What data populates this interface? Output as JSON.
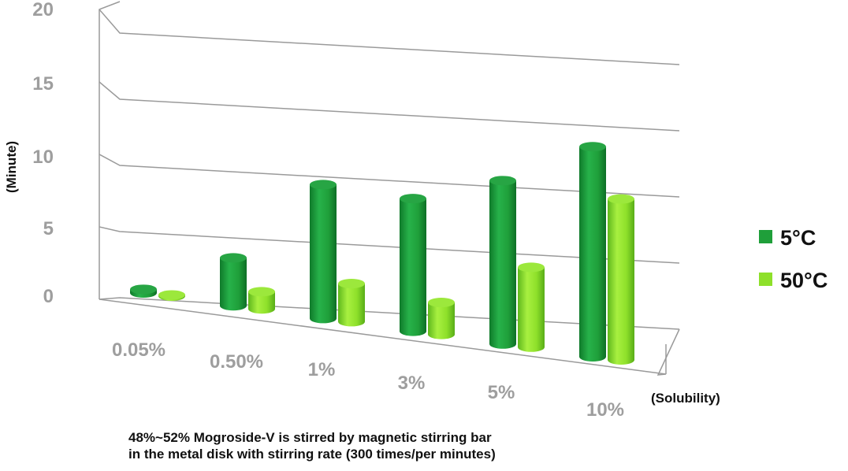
{
  "chart_data": {
    "type": "bar",
    "categories": [
      "0.05%",
      "0.50%",
      "1%",
      "3%",
      "5%",
      "10%"
    ],
    "series": [
      {
        "name": "5°C",
        "values": [
          0.3,
          3.9,
          10.9,
          10.8,
          13.3,
          17.1
        ]
      },
      {
        "name": "50°C",
        "values": [
          0.1,
          1.4,
          3.1,
          2.6,
          6.5,
          13.1
        ]
      }
    ],
    "ylim": [
      0,
      20
    ],
    "yticks": [
      "0",
      "5",
      "10",
      "15",
      "20"
    ],
    "ylabel": "(Minute)",
    "xlabel": "(Solubility)",
    "grid": true,
    "legend": "right",
    "colors": {
      "series_0": "#1f9f3a",
      "series_1": "#8ee02a",
      "grid": "#9a9a9a",
      "ticks": "#9e9e9e"
    }
  },
  "caption": {
    "line1": "48%~52% Mogroside-V is stirred by magnetic stirring bar",
    "line2": "in the metal disk with stirring rate (300 times/per minutes)"
  }
}
